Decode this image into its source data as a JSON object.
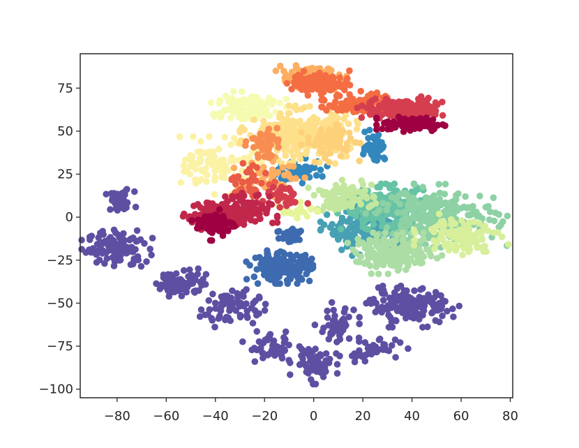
{
  "chart_data": {
    "type": "scatter",
    "title": "",
    "xlabel": "",
    "ylabel": "",
    "xlim": [
      -95,
      81
    ],
    "ylim": [
      -105,
      95
    ],
    "xticks": [
      -80,
      -60,
      -40,
      -20,
      0,
      20,
      40,
      60,
      80
    ],
    "yticks": [
      75,
      50,
      25,
      0,
      -25,
      -50,
      -75,
      -100
    ],
    "xtick_labels": [
      "−80",
      "−60",
      "−40",
      "−20",
      "0",
      "20",
      "40",
      "60",
      "80"
    ],
    "ytick_labels": [
      "75",
      "50",
      "25",
      "0",
      "−25",
      "−50",
      "−75",
      "−100"
    ],
    "grid": false,
    "legend": null,
    "colormap": "Spectral",
    "clusters": [
      {
        "color": "#5e4fa2",
        "center": [
          -79,
          9
        ],
        "spread": [
          3,
          3
        ],
        "n": 45
      },
      {
        "color": "#5e4fa2",
        "center": [
          -80,
          -18
        ],
        "spread": [
          6,
          5
        ],
        "n": 110
      },
      {
        "color": "#5e4fa2",
        "center": [
          -54,
          -38
        ],
        "spread": [
          5,
          4
        ],
        "n": 70
      },
      {
        "color": "#5e4fa2",
        "center": [
          -34,
          -52
        ],
        "spread": [
          6,
          5
        ],
        "n": 80
      },
      {
        "color": "#5e4fa2",
        "center": [
          -17,
          -76
        ],
        "spread": [
          5,
          4
        ],
        "n": 50
      },
      {
        "color": "#5e4fa2",
        "center": [
          0,
          -85
        ],
        "spread": [
          4,
          5
        ],
        "n": 60
      },
      {
        "color": "#5e4fa2",
        "center": [
          9,
          -64
        ],
        "spread": [
          4,
          6
        ],
        "n": 45
      },
      {
        "color": "#5e4fa2",
        "center": [
          24,
          -77
        ],
        "spread": [
          6,
          3
        ],
        "n": 45
      },
      {
        "color": "#5e4fa2",
        "center": [
          40,
          -52
        ],
        "spread": [
          8,
          5
        ],
        "n": 150
      },
      {
        "color": "#3e6bb0",
        "center": [
          -13,
          -29
        ],
        "spread": [
          6,
          4
        ],
        "n": 170
      },
      {
        "color": "#3e6bb0",
        "center": [
          -9,
          -11
        ],
        "spread": [
          3,
          3
        ],
        "n": 35
      },
      {
        "color": "#3288bd",
        "center": [
          25,
          41
        ],
        "spread": [
          2,
          4
        ],
        "n": 60
      },
      {
        "color": "#3288bd",
        "center": [
          -5,
          27
        ],
        "spread": [
          5,
          3
        ],
        "n": 60
      },
      {
        "color": "#47a0b4",
        "center": [
          22,
          -8
        ],
        "spread": [
          8,
          6
        ],
        "n": 180
      },
      {
        "color": "#66c2a5",
        "center": [
          30,
          5
        ],
        "spread": [
          9,
          6
        ],
        "n": 200
      },
      {
        "color": "#8dd1a4",
        "center": [
          50,
          0
        ],
        "spread": [
          12,
          8
        ],
        "n": 230
      },
      {
        "color": "#abdda4",
        "center": [
          33,
          -21
        ],
        "spread": [
          8,
          5
        ],
        "n": 170
      },
      {
        "color": "#c4e79f",
        "center": [
          12,
          12
        ],
        "spread": [
          6,
          4
        ],
        "n": 80
      },
      {
        "color": "#d7ef9b",
        "center": [
          60,
          -10
        ],
        "spread": [
          8,
          5
        ],
        "n": 100
      },
      {
        "color": "#e6f598",
        "center": [
          -8,
          4
        ],
        "spread": [
          4,
          3
        ],
        "n": 20
      },
      {
        "color": "#f6fbb2",
        "center": [
          -28,
          64
        ],
        "spread": [
          7,
          4
        ],
        "n": 120
      },
      {
        "color": "#fcf2a6",
        "center": [
          -38,
          30
        ],
        "spread": [
          7,
          7
        ],
        "n": 110
      },
      {
        "color": "#fee08b",
        "center": [
          -6,
          48
        ],
        "spread": [
          10,
          7
        ],
        "n": 260
      },
      {
        "color": "#fdd17a",
        "center": [
          7,
          44
        ],
        "spread": [
          5,
          5
        ],
        "n": 80
      },
      {
        "color": "#fdae61",
        "center": [
          -1,
          81
        ],
        "spread": [
          6,
          3
        ],
        "n": 110
      },
      {
        "color": "#fdae61",
        "center": [
          -18,
          23
        ],
        "spread": [
          6,
          5
        ],
        "n": 50
      },
      {
        "color": "#f88d52",
        "center": [
          -21,
          43
        ],
        "spread": [
          3,
          4
        ],
        "n": 40
      },
      {
        "color": "#f46d43",
        "center": [
          3,
          78
        ],
        "spread": [
          6,
          3
        ],
        "n": 100
      },
      {
        "color": "#f46d43",
        "center": [
          20,
          66
        ],
        "spread": [
          7,
          3
        ],
        "n": 110
      },
      {
        "color": "#e95c47",
        "center": [
          -25,
          20
        ],
        "spread": [
          5,
          5
        ],
        "n": 40
      },
      {
        "color": "#d53e4f",
        "center": [
          37,
          63
        ],
        "spread": [
          8,
          3
        ],
        "n": 130
      },
      {
        "color": "#d53e4f",
        "center": [
          -12,
          12
        ],
        "spread": [
          4,
          3
        ],
        "n": 30
      },
      {
        "color": "#c1274a",
        "center": [
          -34,
          2
        ],
        "spread": [
          8,
          5
        ],
        "n": 160
      },
      {
        "color": "#9e0142",
        "center": [
          40,
          54
        ],
        "spread": [
          6,
          2
        ],
        "n": 90
      },
      {
        "color": "#9e0142",
        "center": [
          -40,
          -4
        ],
        "spread": [
          4,
          4
        ],
        "n": 60
      }
    ]
  }
}
